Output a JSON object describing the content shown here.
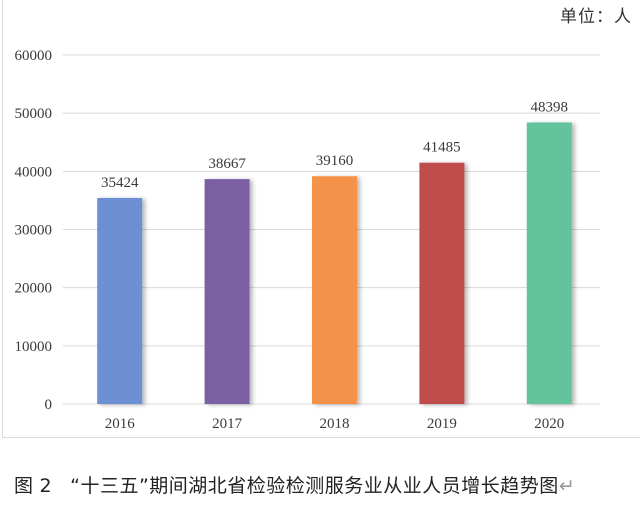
{
  "chart_data": {
    "type": "bar",
    "title": "",
    "unit_label": "单位：人",
    "xlabel": "",
    "ylabel": "",
    "categories": [
      "2016",
      "2017",
      "2018",
      "2019",
      "2020"
    ],
    "values": [
      35424,
      38667,
      39160,
      41485,
      48398
    ],
    "data_labels": [
      "35424",
      "38667",
      "39160",
      "41485",
      "48398"
    ],
    "colors": [
      "#6d8fd3",
      "#7b60a4",
      "#f5924a",
      "#c04b4b",
      "#63c39c"
    ],
    "ylim": [
      0,
      60000
    ],
    "yticks": [
      0,
      10000,
      20000,
      30000,
      40000,
      50000,
      60000
    ],
    "ytick_labels": [
      "0",
      "10000",
      "20000",
      "30000",
      "40000",
      "50000",
      "60000"
    ],
    "grid": true,
    "legend": "none"
  },
  "caption": {
    "fig_label": "图",
    "fig_number": "2",
    "text": "“十三五”期间湖北省检验检测服务业从业人员增长趋势图",
    "end_mark": "↵"
  }
}
